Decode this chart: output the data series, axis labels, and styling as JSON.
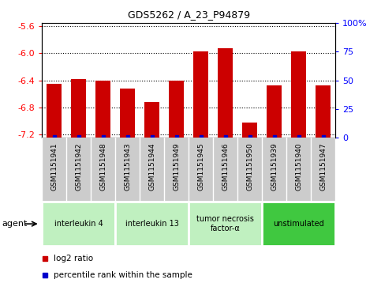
{
  "title": "GDS5262 / A_23_P94879",
  "samples": [
    "GSM1151941",
    "GSM1151942",
    "GSM1151948",
    "GSM1151943",
    "GSM1151944",
    "GSM1151949",
    "GSM1151945",
    "GSM1151946",
    "GSM1151950",
    "GSM1151939",
    "GSM1151940",
    "GSM1151947"
  ],
  "log2_values": [
    -6.45,
    -6.38,
    -6.4,
    -6.52,
    -6.72,
    -6.4,
    -5.97,
    -5.93,
    -7.02,
    -6.47,
    -5.97,
    -6.47
  ],
  "percentile_values": [
    1,
    1,
    1,
    1,
    1,
    1,
    1,
    1,
    1,
    1,
    1,
    1
  ],
  "agents": [
    {
      "label": "interleukin 4",
      "indices": [
        0,
        1,
        2
      ],
      "color": "#c0f0c0"
    },
    {
      "label": "interleukin 13",
      "indices": [
        3,
        4,
        5
      ],
      "color": "#c0f0c0"
    },
    {
      "label": "tumor necrosis\nfactor-α",
      "indices": [
        6,
        7,
        8
      ],
      "color": "#c0f0c0"
    },
    {
      "label": "unstimulated",
      "indices": [
        9,
        10,
        11
      ],
      "color": "#40c840"
    }
  ],
  "ymin": -7.25,
  "ymax": -5.55,
  "yticks": [
    -7.2,
    -6.8,
    -6.4,
    -6.0,
    -5.6
  ],
  "ylabels": [
    "-7.2",
    "-6.8",
    "-6.4",
    "-6.0",
    "-5.6"
  ],
  "y2ticks": [
    0,
    25,
    50,
    75,
    100
  ],
  "y2labels": [
    "0",
    "25",
    "50",
    "75",
    "100%"
  ],
  "bar_color": "#cc0000",
  "percentile_color": "#0000cc",
  "plot_bg": "#ffffff",
  "tick_box_bg": "#cccccc",
  "legend_log2_color": "#cc0000",
  "legend_pct_color": "#0000cc",
  "figsize": [
    4.83,
    3.63
  ],
  "dpi": 100
}
